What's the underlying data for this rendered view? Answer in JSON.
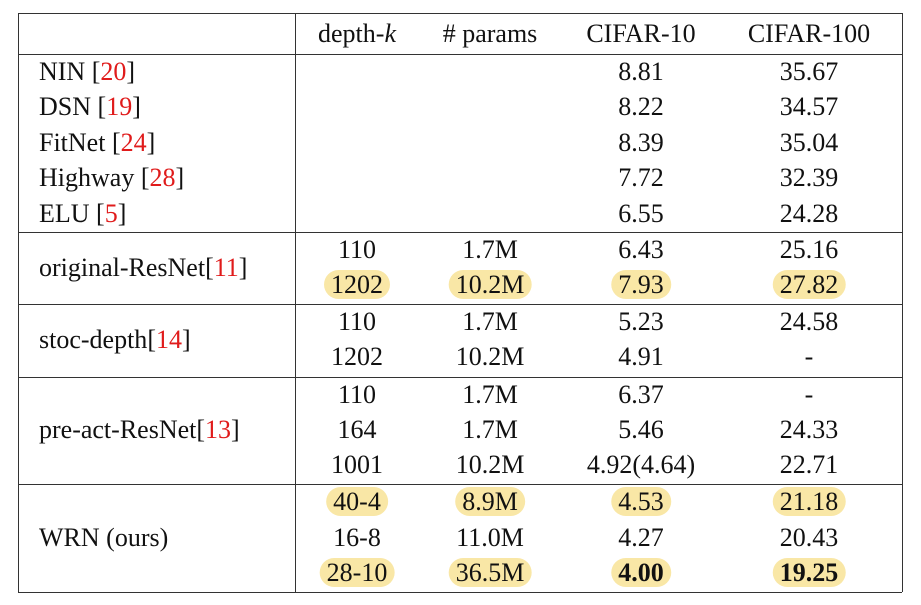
{
  "header": {
    "depth": "depth-",
    "depth_k": "k",
    "params": "# params",
    "cifar10": "CIFAR-10",
    "cifar100": "CIFAR-100"
  },
  "colors": {
    "highlight": "#f9e7a6",
    "citation": "#e01b1b"
  },
  "groups": {
    "baselines": [
      {
        "name": "NIN",
        "ref": "20",
        "c10": "8.81",
        "c100": "35.67"
      },
      {
        "name": "DSN",
        "ref": "19",
        "c10": "8.22",
        "c100": "34.57"
      },
      {
        "name": "FitNet",
        "ref": "24",
        "c10": "8.39",
        "c100": "35.04"
      },
      {
        "name": "Highway",
        "ref": "28",
        "c10": "7.72",
        "c100": "32.39"
      },
      {
        "name": "ELU",
        "ref": "5",
        "c10": "6.55",
        "c100": "24.28"
      }
    ],
    "original_resnet": {
      "name": "original-ResNet",
      "ref": "11",
      "rows": [
        {
          "depth": "110",
          "params": "1.7M",
          "c10": "6.43",
          "c100": "25.16"
        },
        {
          "depth": "1202",
          "params": "10.2M",
          "c10": "7.93",
          "c100": "27.82"
        }
      ]
    },
    "stoc_depth": {
      "name": "stoc-depth",
      "ref": "14",
      "rows": [
        {
          "depth": "110",
          "params": "1.7M",
          "c10": "5.23",
          "c100": "24.58"
        },
        {
          "depth": "1202",
          "params": "10.2M",
          "c10": "4.91",
          "c100": "-"
        }
      ]
    },
    "pre_act_resnet": {
      "name": "pre-act-ResNet",
      "ref": "13",
      "rows": [
        {
          "depth": "110",
          "params": "1.7M",
          "c10": "6.37",
          "c100": "-"
        },
        {
          "depth": "164",
          "params": "1.7M",
          "c10": "5.46",
          "c100": "24.33"
        },
        {
          "depth": "1001",
          "params": "10.2M",
          "c10": "4.92(4.64)",
          "c100": "22.71"
        }
      ]
    },
    "wrn": {
      "name": "WRN (ours)",
      "rows": [
        {
          "depth": "40-4",
          "params": "8.9M",
          "c10": "4.53",
          "c100": "21.18"
        },
        {
          "depth": "16-8",
          "params": "11.0M",
          "c10": "4.27",
          "c100": "20.43"
        },
        {
          "depth": "28-10",
          "params": "36.5M",
          "c10": "4.00",
          "c100": "19.25"
        }
      ]
    }
  }
}
